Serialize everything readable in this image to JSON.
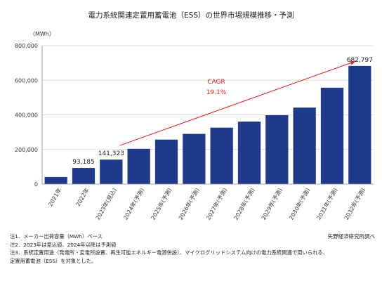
{
  "chart_data": {
    "type": "bar",
    "title": "電力系統関連定置用蓄電池（ESS）の世界市場規模推移・予測",
    "unit_label": "（MWh）",
    "categories": [
      "2021年",
      "2022年",
      "2023年(見込)",
      "2024年(予測)",
      "2025年(予測)",
      "2026年(予測)",
      "2027年(予測)",
      "2028年(予測)",
      "2029年(予測)",
      "2030年(予測)",
      "2031年(予測)",
      "2032年(予測)"
    ],
    "values": [
      41000,
      93185,
      141323,
      204000,
      257000,
      290000,
      326000,
      361000,
      398000,
      442000,
      557000,
      682797
    ],
    "data_labels": [
      {
        "index": 1,
        "text": "93,185"
      },
      {
        "index": 2,
        "text": "141,323"
      },
      {
        "index": 11,
        "text": "682,797"
      }
    ],
    "y_ticks": [
      "0",
      "200,000",
      "400,000",
      "600,000",
      "800,000"
    ],
    "y_tick_values": [
      0,
      200000,
      400000,
      600000,
      800000
    ],
    "ylim": [
      0,
      800000
    ],
    "grid": true,
    "bar_color": "#1f3a8a",
    "arrow_color": "#e02020",
    "annotation": {
      "line1": "CAGR",
      "line2": "19.1%"
    }
  },
  "notes": [
    "注1．メーカー出荷容量（MWh）ベース",
    "注2．2023年は見込値、2024年以降は予測値",
    "注3．系統定置用途（発電所・変電所設置、再生可能エネルギー電源併設）、マイクログリッドシステム向けの電力系統関連で用いられる、",
    "定置用蓄電池（ESS）を対象とした。"
  ],
  "source": "矢野経済研究所調べ"
}
